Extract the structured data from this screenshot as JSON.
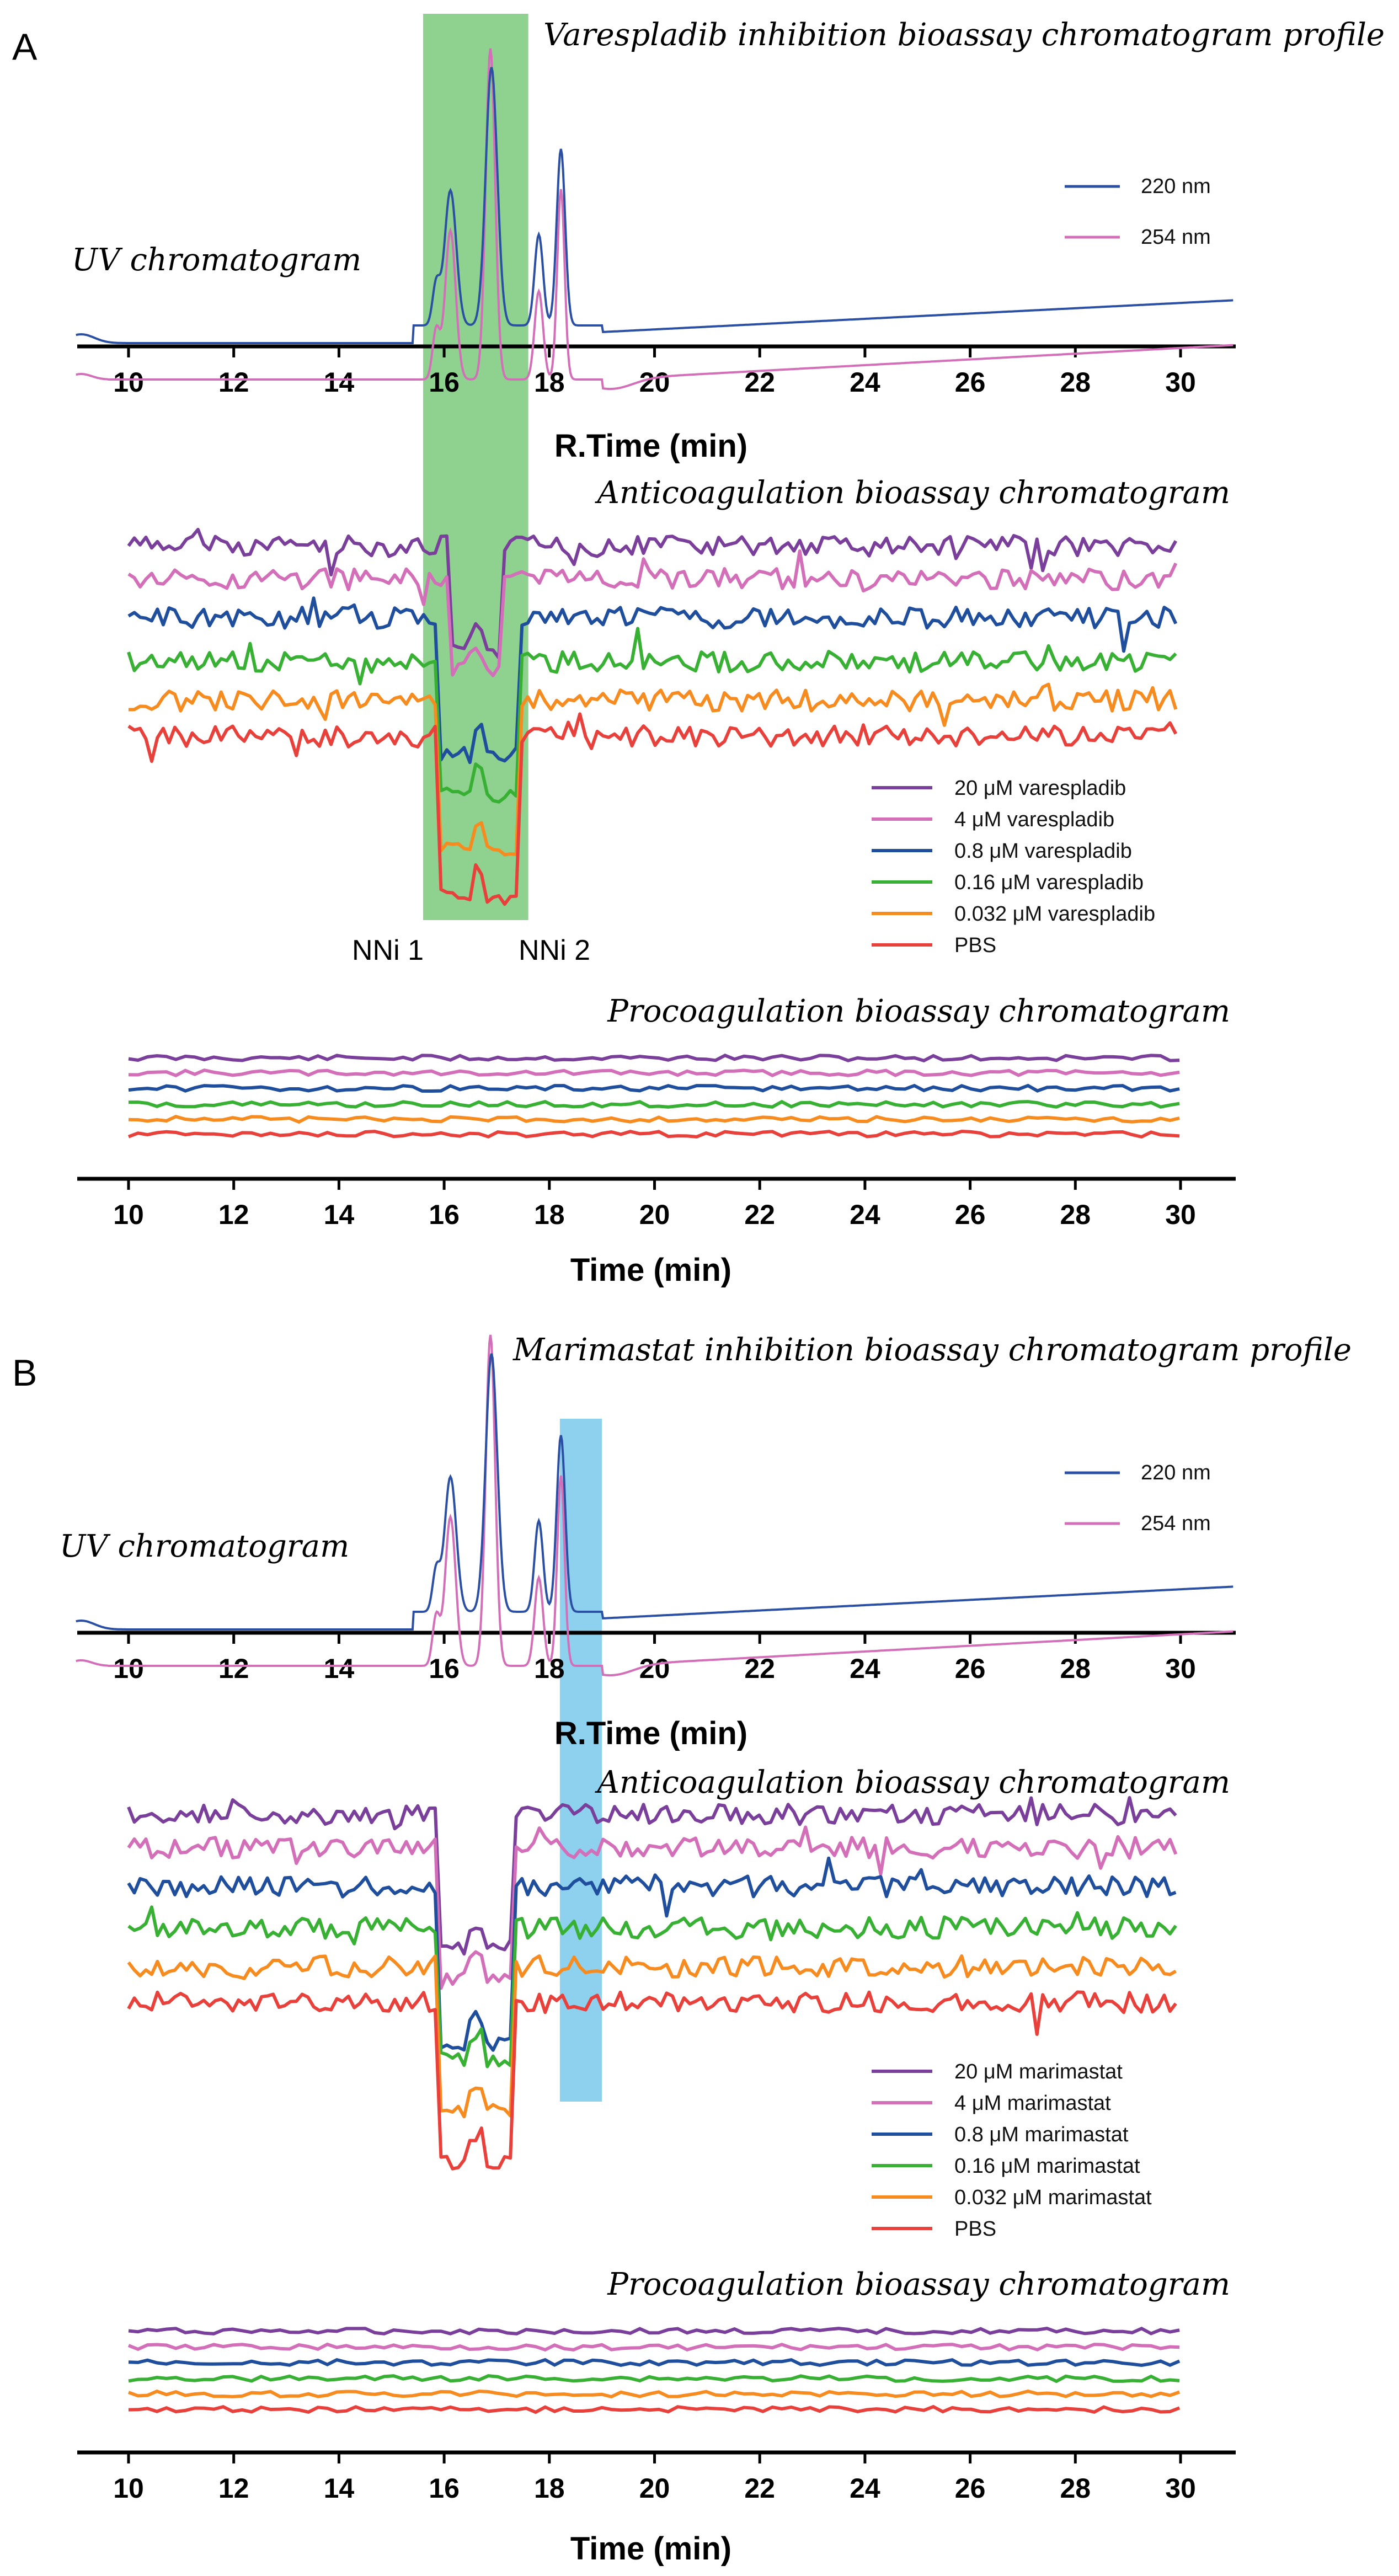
{
  "figure": {
    "panels": [
      {
        "letter": "A",
        "title": "Varespladib inhibition bioassay chromatogram profile",
        "highlight": {
          "x_range": [
            15.6,
            17.6
          ],
          "color": "#8fd18f"
        },
        "uv": {
          "label": "UV chromatogram",
          "xlabel": "R.Time (min)",
          "x_range": [
            9,
            31
          ],
          "ticks": [
            10,
            12,
            14,
            16,
            18,
            20,
            22,
            24,
            26,
            28,
            30
          ],
          "legend": [
            {
              "name": "220 nm",
              "color": "#2a4fa3"
            },
            {
              "name": "254 nm",
              "color": "#d36fb8"
            }
          ]
        },
        "anti": {
          "title": "Anticoagulation bioassay chromatogram",
          "legend": [
            {
              "name": "20 μM varespladib",
              "color": "#7a3f9a"
            },
            {
              "name": "4 μM varespladib",
              "color": "#d36fb8"
            },
            {
              "name": "0.8 μM varespladib",
              "color": "#1f4e9c"
            },
            {
              "name": "0.16 μM varespladib",
              "color": "#38b034"
            },
            {
              "name": "0.032 μM varespladib",
              "color": "#f68b1f"
            },
            {
              "name": "PBS",
              "color": "#e8413c"
            }
          ],
          "annotations": [
            "NNi 1",
            "NNi 2"
          ]
        },
        "pro": {
          "title": "Procoagulation bioassay chromatogram",
          "xlabel": "Time (min)",
          "ticks": [
            10,
            12,
            14,
            16,
            18,
            20,
            22,
            24,
            26,
            28,
            30
          ]
        }
      },
      {
        "letter": "B",
        "title": "Marimastat inhibition bioassay chromatogram profile",
        "highlight": {
          "x_range": [
            18.2,
            19.0
          ],
          "color": "#8ed1ee"
        },
        "uv": {
          "label": "UV chromatogram",
          "xlabel": "R.Time (min)",
          "x_range": [
            9,
            31
          ],
          "ticks": [
            10,
            12,
            14,
            16,
            18,
            20,
            22,
            24,
            26,
            28,
            30
          ],
          "legend": [
            {
              "name": "220 nm",
              "color": "#2a4fa3"
            },
            {
              "name": "254 nm",
              "color": "#d36fb8"
            }
          ]
        },
        "anti": {
          "title": "Anticoagulation bioassay chromatogram",
          "legend": [
            {
              "name": "20 μM marimastat",
              "color": "#7a3f9a"
            },
            {
              "name": "4 μM marimastat",
              "color": "#d36fb8"
            },
            {
              "name": "0.8 μM marimastat",
              "color": "#1f4e9c"
            },
            {
              "name": "0.16 μM marimastat",
              "color": "#38b034"
            },
            {
              "name": "0.032 μM marimastat",
              "color": "#f68b1f"
            },
            {
              "name": "PBS",
              "color": "#e8413c"
            }
          ],
          "annotations": []
        },
        "pro": {
          "title": "Procoagulation bioassay chromatogram",
          "xlabel": "Time (min)",
          "ticks": [
            10,
            12,
            14,
            16,
            18,
            20,
            22,
            24,
            26,
            28,
            30
          ]
        }
      }
    ]
  },
  "chart_data": [
    {
      "type": "line",
      "title": "Varespladib inhibition bioassay chromatogram profile — UV chromatogram",
      "xlabel": "R.Time (min)",
      "xlim": [
        9,
        31
      ],
      "series": [
        {
          "name": "220 nm",
          "peaks_at_min": [
            16.1,
            16.9,
            17.8,
            18.2
          ]
        },
        {
          "name": "254 nm",
          "peaks_at_min": [
            16.1,
            16.9,
            17.8,
            18.2
          ]
        }
      ]
    },
    {
      "type": "line",
      "title": "Anticoagulation bioassay chromatogram (varespladib)",
      "xlim": [
        10,
        30
      ],
      "series": [
        {
          "name": "20 μM varespladib",
          "dip_range_min": [
            16.1,
            17.1
          ]
        },
        {
          "name": "4 μM varespladib",
          "dip_range_min": [
            16.1,
            17.1
          ]
        },
        {
          "name": "0.8 μM varespladib",
          "dip_range_min": [
            15.9,
            17.4
          ]
        },
        {
          "name": "0.16 μM varespladib",
          "dip_range_min": [
            15.9,
            17.4
          ]
        },
        {
          "name": "0.032 μM varespladib",
          "dip_range_min": [
            15.9,
            17.4
          ]
        },
        {
          "name": "PBS",
          "dip_range_min": [
            15.9,
            17.4
          ]
        }
      ]
    },
    {
      "type": "line",
      "title": "Procoagulation bioassay chromatogram (varespladib)",
      "xlabel": "Time (min)",
      "xlim": [
        9,
        31
      ],
      "series": [
        {
          "name": "PBS"
        },
        {
          "name": "0.032 μM varespladib"
        },
        {
          "name": "0.16 μM varespladib"
        },
        {
          "name": "0.8 μM varespladib"
        },
        {
          "name": "4 μM varespladib"
        },
        {
          "name": "20 μM varespladib"
        }
      ]
    },
    {
      "type": "line",
      "title": "Marimastat inhibition bioassay chromatogram profile — UV chromatogram",
      "xlabel": "R.Time (min)",
      "xlim": [
        9,
        31
      ],
      "series": [
        {
          "name": "220 nm",
          "peaks_at_min": [
            16.1,
            16.9,
            17.8,
            18.2
          ]
        },
        {
          "name": "254 nm",
          "peaks_at_min": [
            16.1,
            16.9,
            17.8,
            18.2
          ]
        }
      ]
    },
    {
      "type": "line",
      "title": "Anticoagulation bioassay chromatogram (marimastat)",
      "xlim": [
        10,
        30
      ],
      "series": [
        {
          "name": "20 μM marimastat",
          "dip_range_min": [
            15.9,
            17.3
          ]
        },
        {
          "name": "4 μM marimastat",
          "dip_range_min": [
            15.9,
            17.3
          ]
        },
        {
          "name": "0.8 μM marimastat",
          "dip_range_min": [
            15.9,
            17.3
          ]
        },
        {
          "name": "0.16 μM marimastat",
          "dip_range_min": [
            15.9,
            17.3
          ]
        },
        {
          "name": "0.032 μM marimastat",
          "dip_range_min": [
            15.9,
            17.3
          ]
        },
        {
          "name": "PBS",
          "dip_range_min": [
            15.9,
            17.3
          ]
        }
      ]
    },
    {
      "type": "line",
      "title": "Procoagulation bioassay chromatogram (marimastat)",
      "xlabel": "Time (min)",
      "xlim": [
        9,
        31
      ],
      "series": [
        {
          "name": "PBS"
        },
        {
          "name": "0.032 μM marimastat"
        },
        {
          "name": "0.16 μM marimastat"
        },
        {
          "name": "0.8 μM marimastat"
        },
        {
          "name": "4 μM marimastat"
        },
        {
          "name": "20 μM marimastat"
        }
      ]
    }
  ]
}
